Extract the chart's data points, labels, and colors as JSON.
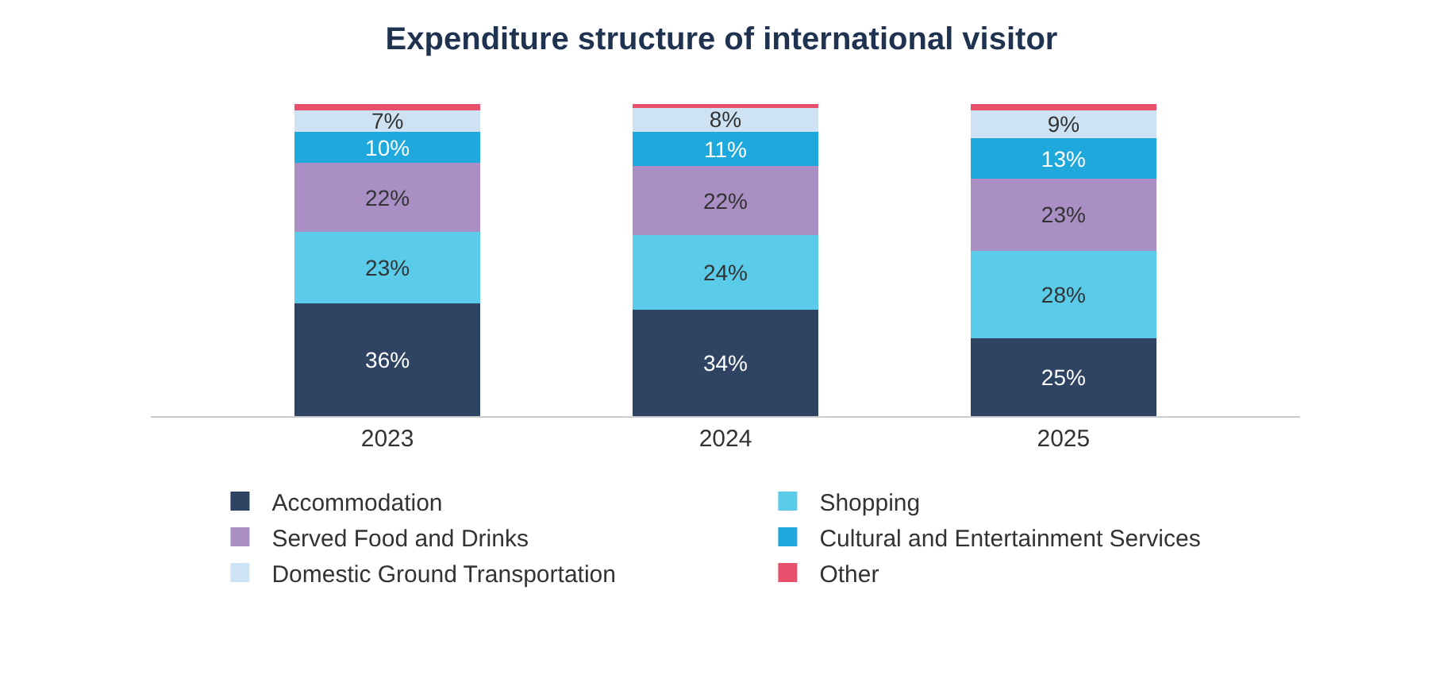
{
  "chart_data": {
    "type": "bar",
    "title": "Expenditure structure of international visitor",
    "categories": [
      "2023",
      "2024",
      "2025"
    ],
    "stacked": true,
    "legend": "bottom",
    "series": [
      {
        "name": "Accommodation",
        "color": "#2f4463",
        "values": [
          36,
          34,
          25
        ],
        "value_labels": [
          "36%",
          "34%",
          "25%"
        ]
      },
      {
        "name": "Shopping",
        "color": "#5bcbea",
        "values": [
          23,
          24,
          28
        ],
        "value_labels": [
          "23%",
          "24%",
          "28%"
        ]
      },
      {
        "name": "Served Food and Drinks",
        "color": "#a98fc4",
        "values": [
          22,
          22,
          23
        ],
        "value_labels": [
          "22%",
          "22%",
          "23%"
        ]
      },
      {
        "name": "Cultural and Entertainment Services",
        "color": "#1ea8dc",
        "values": [
          10,
          11,
          13
        ],
        "value_labels": [
          "10%",
          "11%",
          "13%"
        ]
      },
      {
        "name": "Domestic Ground Transportation",
        "color": "#cde3f3",
        "values": [
          7,
          8,
          9
        ],
        "value_labels": [
          "7%",
          "8%",
          "9%"
        ]
      },
      {
        "name": "Other",
        "color": "#e8506e",
        "values": [
          2,
          1,
          2
        ],
        "value_labels": [
          null,
          null,
          null
        ]
      }
    ]
  }
}
